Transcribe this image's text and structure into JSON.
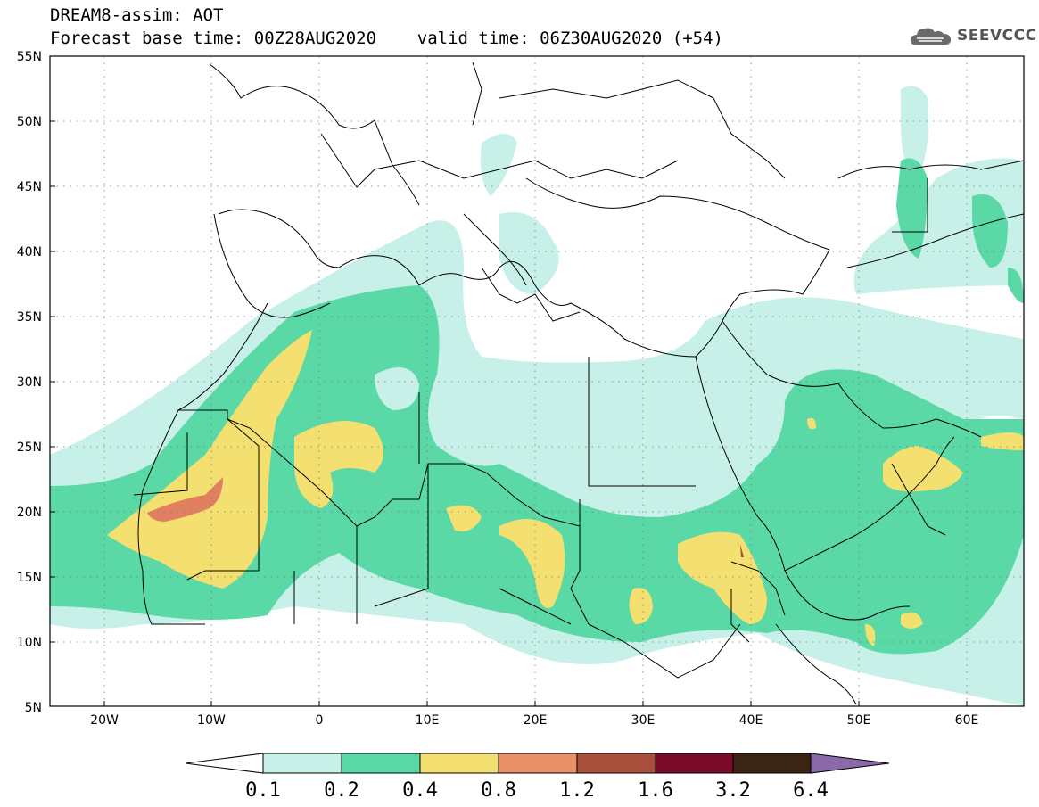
{
  "header": {
    "line1": "DREAM8-assim: AOT",
    "line2": "Forecast base time: 00Z28AUG2020    valid time: 06Z30AUG2020 (+54)"
  },
  "logo": {
    "text": "SEEVCCC",
    "icon": "cloud-icon"
  },
  "map": {
    "lat_labels": [
      "55N",
      "50N",
      "45N",
      "40N",
      "35N",
      "30N",
      "25N",
      "20N",
      "15N",
      "10N",
      "5N"
    ],
    "lon_labels": [
      "20W",
      "10W",
      "0",
      "10E",
      "20E",
      "30E",
      "40E",
      "50E",
      "60E"
    ],
    "lon_range": [
      -25,
      65
    ],
    "lat_range": [
      5,
      55
    ]
  },
  "colorbar": {
    "labels": [
      "0.1",
      "0.2",
      "0.4",
      "0.8",
      "1.2",
      "1.6",
      "3.2",
      "6.4"
    ],
    "colors": [
      "#ffffff",
      "#c7f0e8",
      "#5ad8a5",
      "#f3e070",
      "#e89068",
      "#a8503c",
      "#7a0a28",
      "#3a2414",
      "#8a6aa8"
    ]
  },
  "palette": {
    "very_low": "#c7f0e8",
    "low": "#5ad8a5",
    "medium": "#f3e070",
    "high": "#e08060",
    "border": "#000000"
  }
}
